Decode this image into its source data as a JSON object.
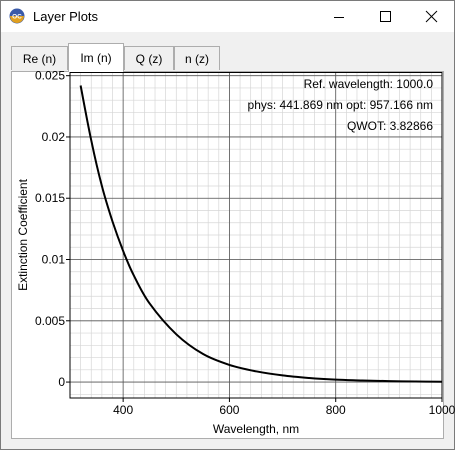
{
  "window": {
    "title": "Layer Plots",
    "icon": "app-logo-icon"
  },
  "controls": [
    "minimize-icon",
    "maximize-icon",
    "close-icon"
  ],
  "tabs": [
    {
      "label": "Re (n)",
      "active": false
    },
    {
      "label": "Im (n)",
      "active": true
    },
    {
      "label": "Q (z)",
      "active": false
    },
    {
      "label": "n (z)",
      "active": false
    }
  ],
  "annotations": {
    "line1": "Ref. wavelength: 1000.0",
    "line2": "phys: 441.869 nm opt: 957.166 nm",
    "line3": "QWOT: 3.82866"
  },
  "chart_data": {
    "type": "line",
    "xlabel": "Wavelength, nm",
    "ylabel": "Extinction Coefficient",
    "xlim": [
      300,
      1000
    ],
    "ylim": [
      -0.0013,
      0.0253
    ],
    "xticks": [
      400,
      600,
      800,
      1000
    ],
    "xtick_labels": [
      "400",
      "600",
      "800",
      "1000"
    ],
    "yticks": [
      0,
      0.005,
      0.01,
      0.015,
      0.02,
      0.025
    ],
    "ytick_labels": [
      "0",
      "0.005",
      "0.01",
      "0.015",
      "0.02",
      "0.025"
    ],
    "grid": true,
    "series": [
      {
        "color": "#000000",
        "x": [
          320,
          340,
          360,
          380,
          400,
          420,
          450,
          500,
          550,
          600,
          650,
          700,
          750,
          800,
          850,
          900,
          950,
          1000
        ],
        "y": [
          0.0242,
          0.0197,
          0.016,
          0.0131,
          0.0107,
          0.0087,
          0.0064,
          0.0039,
          0.0023,
          0.0014,
          0.00088,
          0.00054,
          0.00033,
          0.0002,
          0.00013,
          8e-05,
          5e-05,
          3e-05
        ]
      }
    ]
  }
}
